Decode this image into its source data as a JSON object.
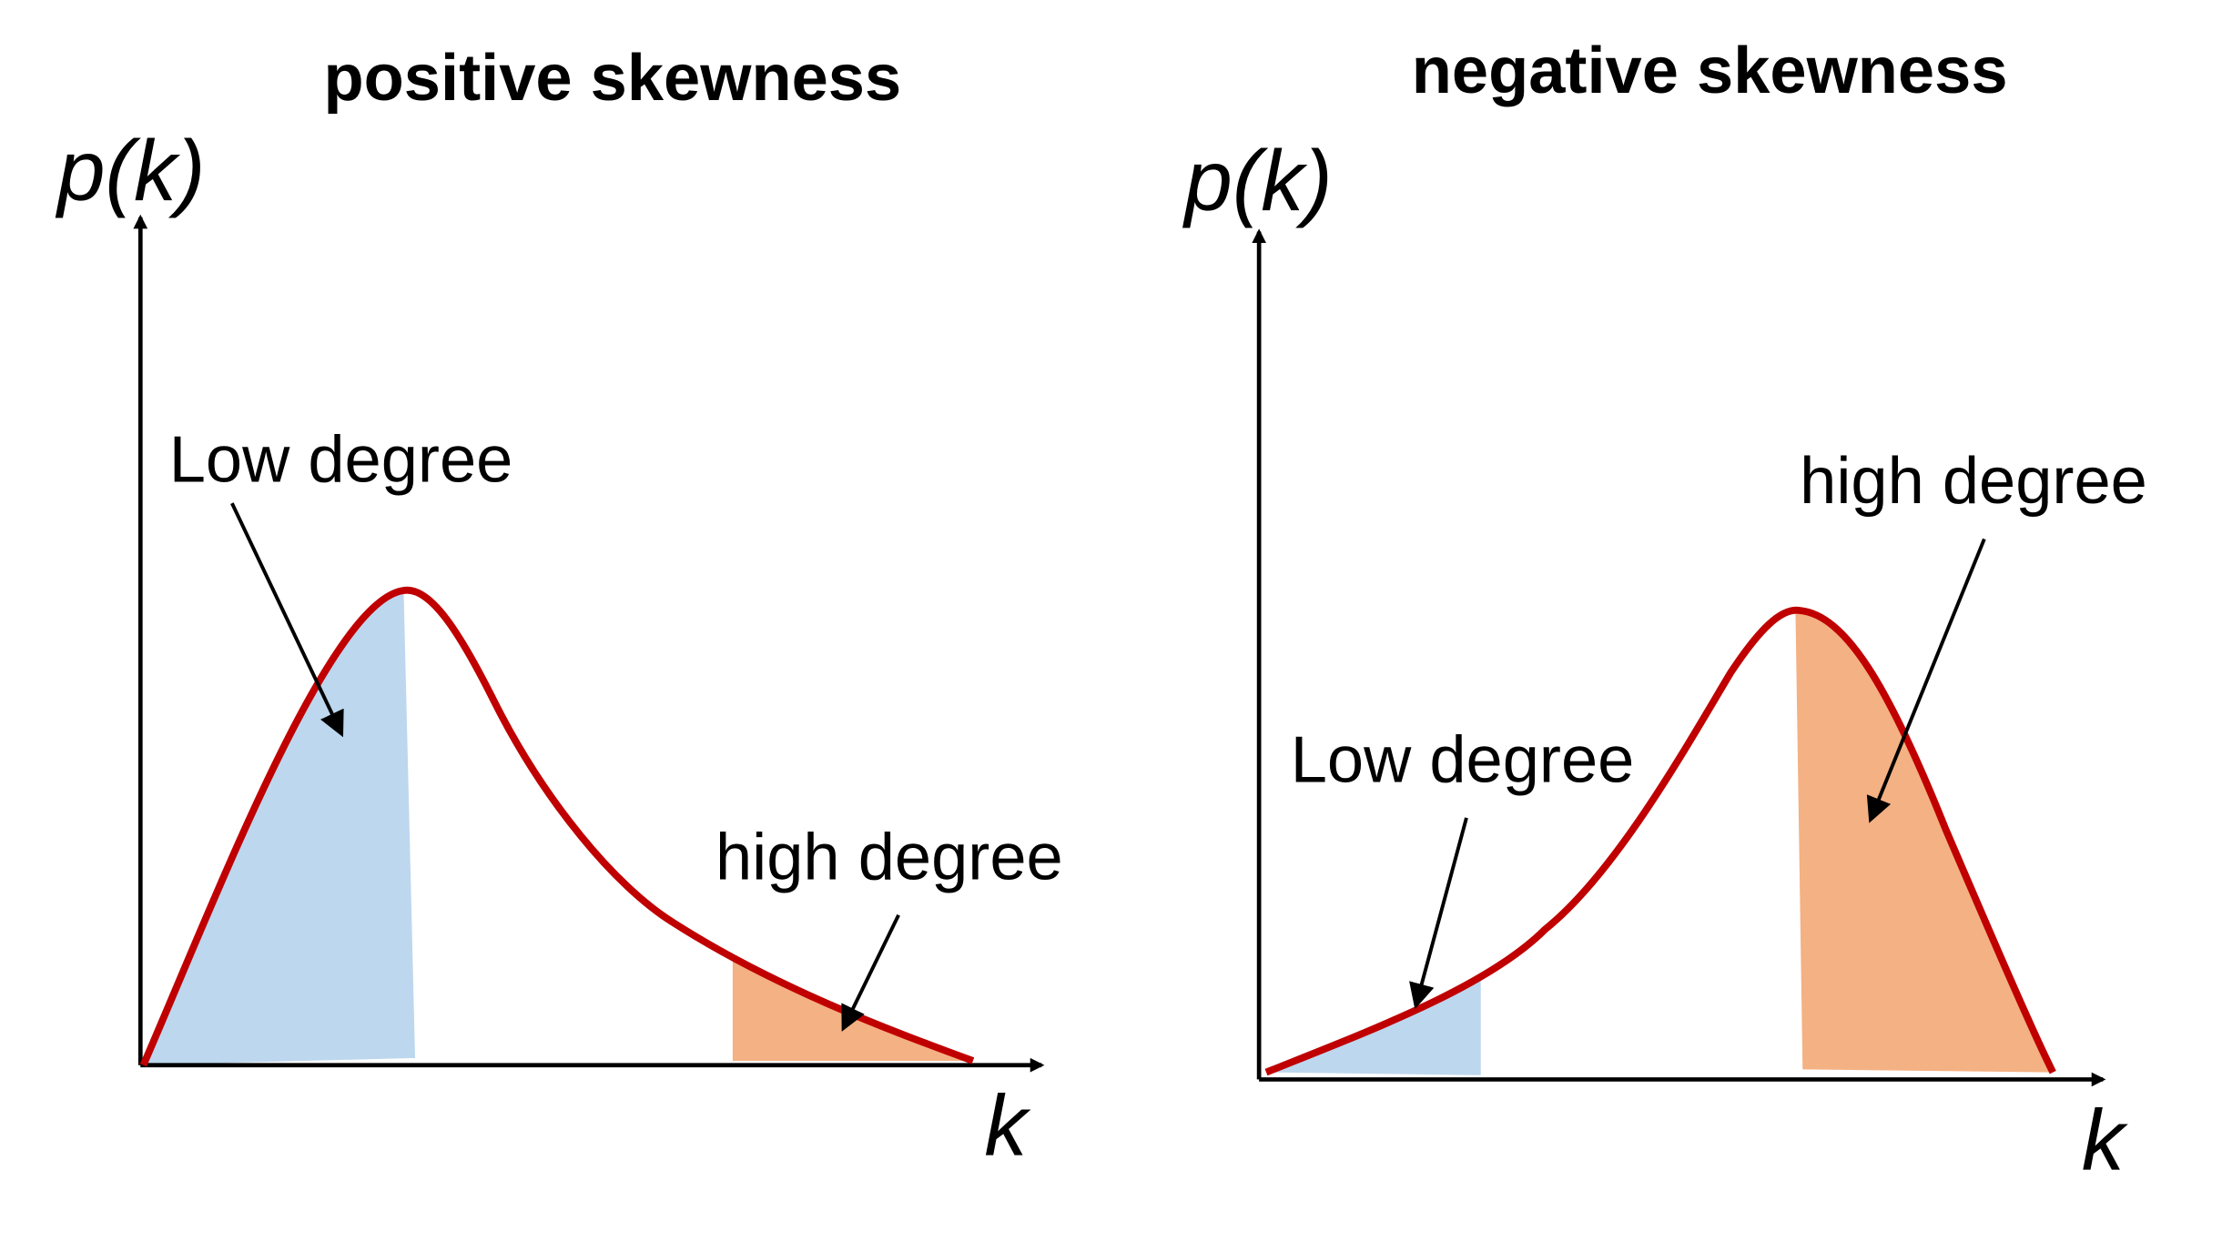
{
  "panels": [
    {
      "title": "positive skewness",
      "y_label": "p(k)",
      "x_label": "k",
      "annotations": [
        "Low degree",
        "high degree"
      ]
    },
    {
      "title": "negative skewness",
      "y_label": "p(k)",
      "x_label": "k",
      "annotations": [
        "Low degree",
        "high degree"
      ]
    }
  ]
}
